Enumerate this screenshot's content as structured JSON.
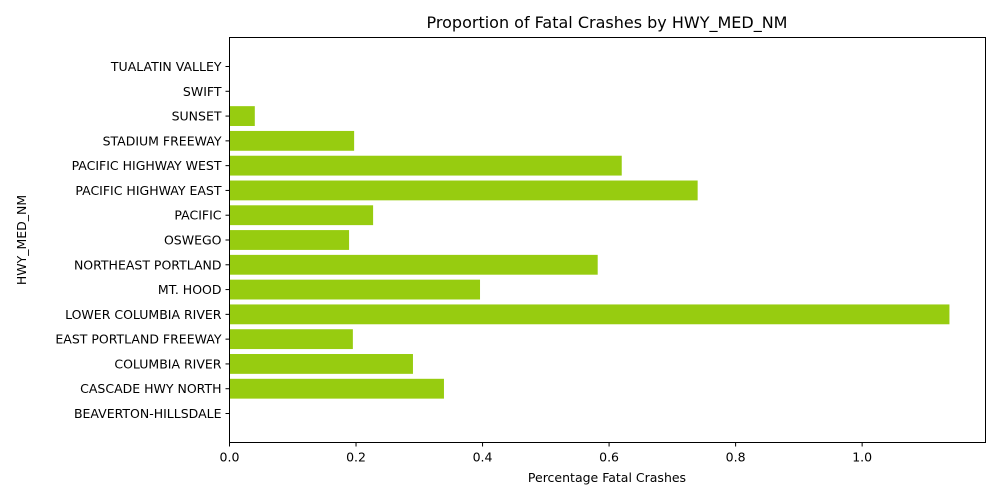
{
  "chart_data": {
    "type": "bar",
    "orientation": "horizontal",
    "title": "Proportion of Fatal Crashes by HWY_MED_NM",
    "xlabel": "Percentage Fatal Crashes",
    "ylabel": "HWY_MED_NM",
    "xlim": [
      0,
      1.195
    ],
    "xticks": [
      "0.0",
      "0.2",
      "0.4",
      "0.6",
      "0.8",
      "1.0"
    ],
    "grid": false,
    "bar_color": "#97cc10",
    "categories": [
      "BEAVERTON-HILLSDALE",
      "CASCADE HWY NORTH",
      "COLUMBIA RIVER",
      "EAST PORTLAND FREEWAY",
      "LOWER COLUMBIA RIVER",
      "MT. HOOD",
      "NORTHEAST PORTLAND",
      "OSWEGO",
      "PACIFIC",
      "PACIFIC HIGHWAY EAST",
      "PACIFIC HIGHWAY WEST",
      "STADIUM FREEWAY",
      "SUNSET",
      "SWIFT",
      "TUALATIN VALLEY"
    ],
    "values": [
      0.0,
      0.339,
      0.29,
      0.195,
      1.138,
      0.396,
      0.582,
      0.189,
      0.227,
      0.74,
      0.62,
      0.197,
      0.04,
      0.0,
      0.0
    ]
  }
}
